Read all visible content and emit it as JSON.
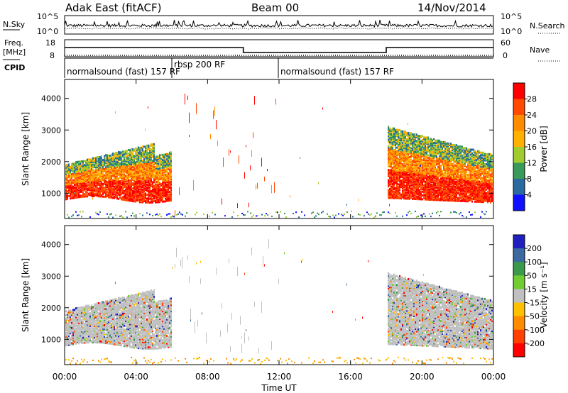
{
  "header": {
    "station": "Adak East (fitACF)",
    "beam": "Beam 00",
    "date": "14/Nov/2014"
  },
  "top_panels": {
    "nsky_label": "N.Sky",
    "nsky_ticks": [
      "10^5",
      "10^0"
    ],
    "nsearch_label": "N.Search",
    "nsearch_ticks": [
      "10^5",
      "10^0"
    ],
    "freq_label": "Freq.",
    "freq_unit": "[MHz]",
    "freq_ticks": [
      "18",
      "8"
    ],
    "nave_label": "Nave",
    "nave_ticks": [
      "60",
      "0"
    ],
    "cpid_label": "CPID",
    "cpid_segments": [
      {
        "label": "normalsound (fast) 157 RF",
        "start_h": 0,
        "end_h": 6
      },
      {
        "label": "rbsp 200 RF",
        "start_h": 6,
        "end_h": 12
      },
      {
        "label": "normalsound (fast) 157 RF",
        "start_h": 12,
        "end_h": 24
      }
    ]
  },
  "chart_data": [
    {
      "type": "heatmap",
      "title": "",
      "xlabel": "Time UT",
      "ylabel": "Slant Range [km]",
      "x_ticks": [
        "00:00",
        "04:00",
        "08:00",
        "12:00",
        "16:00",
        "20:00",
        "00:00"
      ],
      "y_ticks": [
        "1000",
        "2000",
        "3000",
        "4000"
      ],
      "ylim": [
        200,
        4600
      ],
      "xlim_hours": [
        0,
        24
      ],
      "colorbar": {
        "label": "Power [dB]",
        "ticks": [
          "28",
          "24",
          "20",
          "16",
          "12",
          "8",
          "4"
        ],
        "colors": [
          "#ff0000",
          "#ff4a00",
          "#ff8c00",
          "#ffb000",
          "#a0cc30",
          "#3a9a5a",
          "#2a6aa0",
          "#1010ff"
        ]
      }
    },
    {
      "type": "heatmap",
      "title": "",
      "xlabel": "Time UT",
      "ylabel": "Slant Range [km]",
      "x_ticks": [
        "00:00",
        "04:00",
        "08:00",
        "12:00",
        "16:00",
        "20:00",
        "00:00"
      ],
      "y_ticks": [
        "1000",
        "2000",
        "3000",
        "4000"
      ],
      "ylim": [
        200,
        4600
      ],
      "xlim_hours": [
        0,
        24
      ],
      "colorbar": {
        "label": "Velocity [m s⁻¹]",
        "ticks": [
          "200",
          "100",
          "50",
          "15",
          "-15",
          "-50",
          "-100",
          "-200"
        ],
        "colors": [
          "#2020c0",
          "#3a6aa0",
          "#3a9a4a",
          "#70cc30",
          "#c0c0c0",
          "#ffc000",
          "#ff8c00",
          "#ff4000",
          "#ff0000"
        ]
      }
    }
  ]
}
